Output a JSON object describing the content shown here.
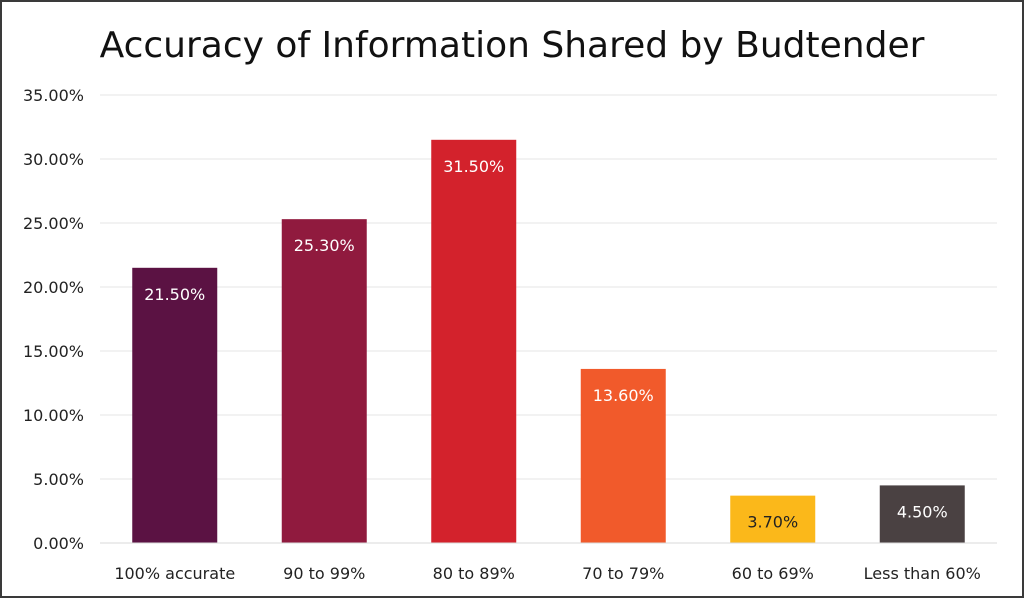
{
  "chart_data": {
    "type": "bar",
    "title": "Accuracy of Information Shared by Budtender",
    "categories": [
      "100% accurate",
      "90 to 99%",
      "80 to 89%",
      "70 to 79%",
      "60 to 69%",
      "Less than 60%"
    ],
    "values": [
      21.5,
      25.3,
      31.5,
      13.6,
      3.7,
      4.5
    ],
    "data_labels": [
      "21.50%",
      "25.30%",
      "31.50%",
      "13.60%",
      "3.70%",
      "4.50%"
    ],
    "colors": [
      "#5b1243",
      "#901a3e",
      "#d3222c",
      "#f15a2b",
      "#fbb81a",
      "#4a4142"
    ],
    "label_colors": [
      "#ffffff",
      "#ffffff",
      "#ffffff",
      "#ffffff",
      "#222222",
      "#ffffff"
    ],
    "ylim": [
      0,
      35
    ],
    "y_ticks": [
      0,
      5,
      10,
      15,
      20,
      25,
      30,
      35
    ],
    "y_tick_labels": [
      "0.00%",
      "5.00%",
      "10.00%",
      "15.00%",
      "20.00%",
      "25.00%",
      "30.00%",
      "35.00%"
    ],
    "grid": true,
    "legend": "none"
  }
}
